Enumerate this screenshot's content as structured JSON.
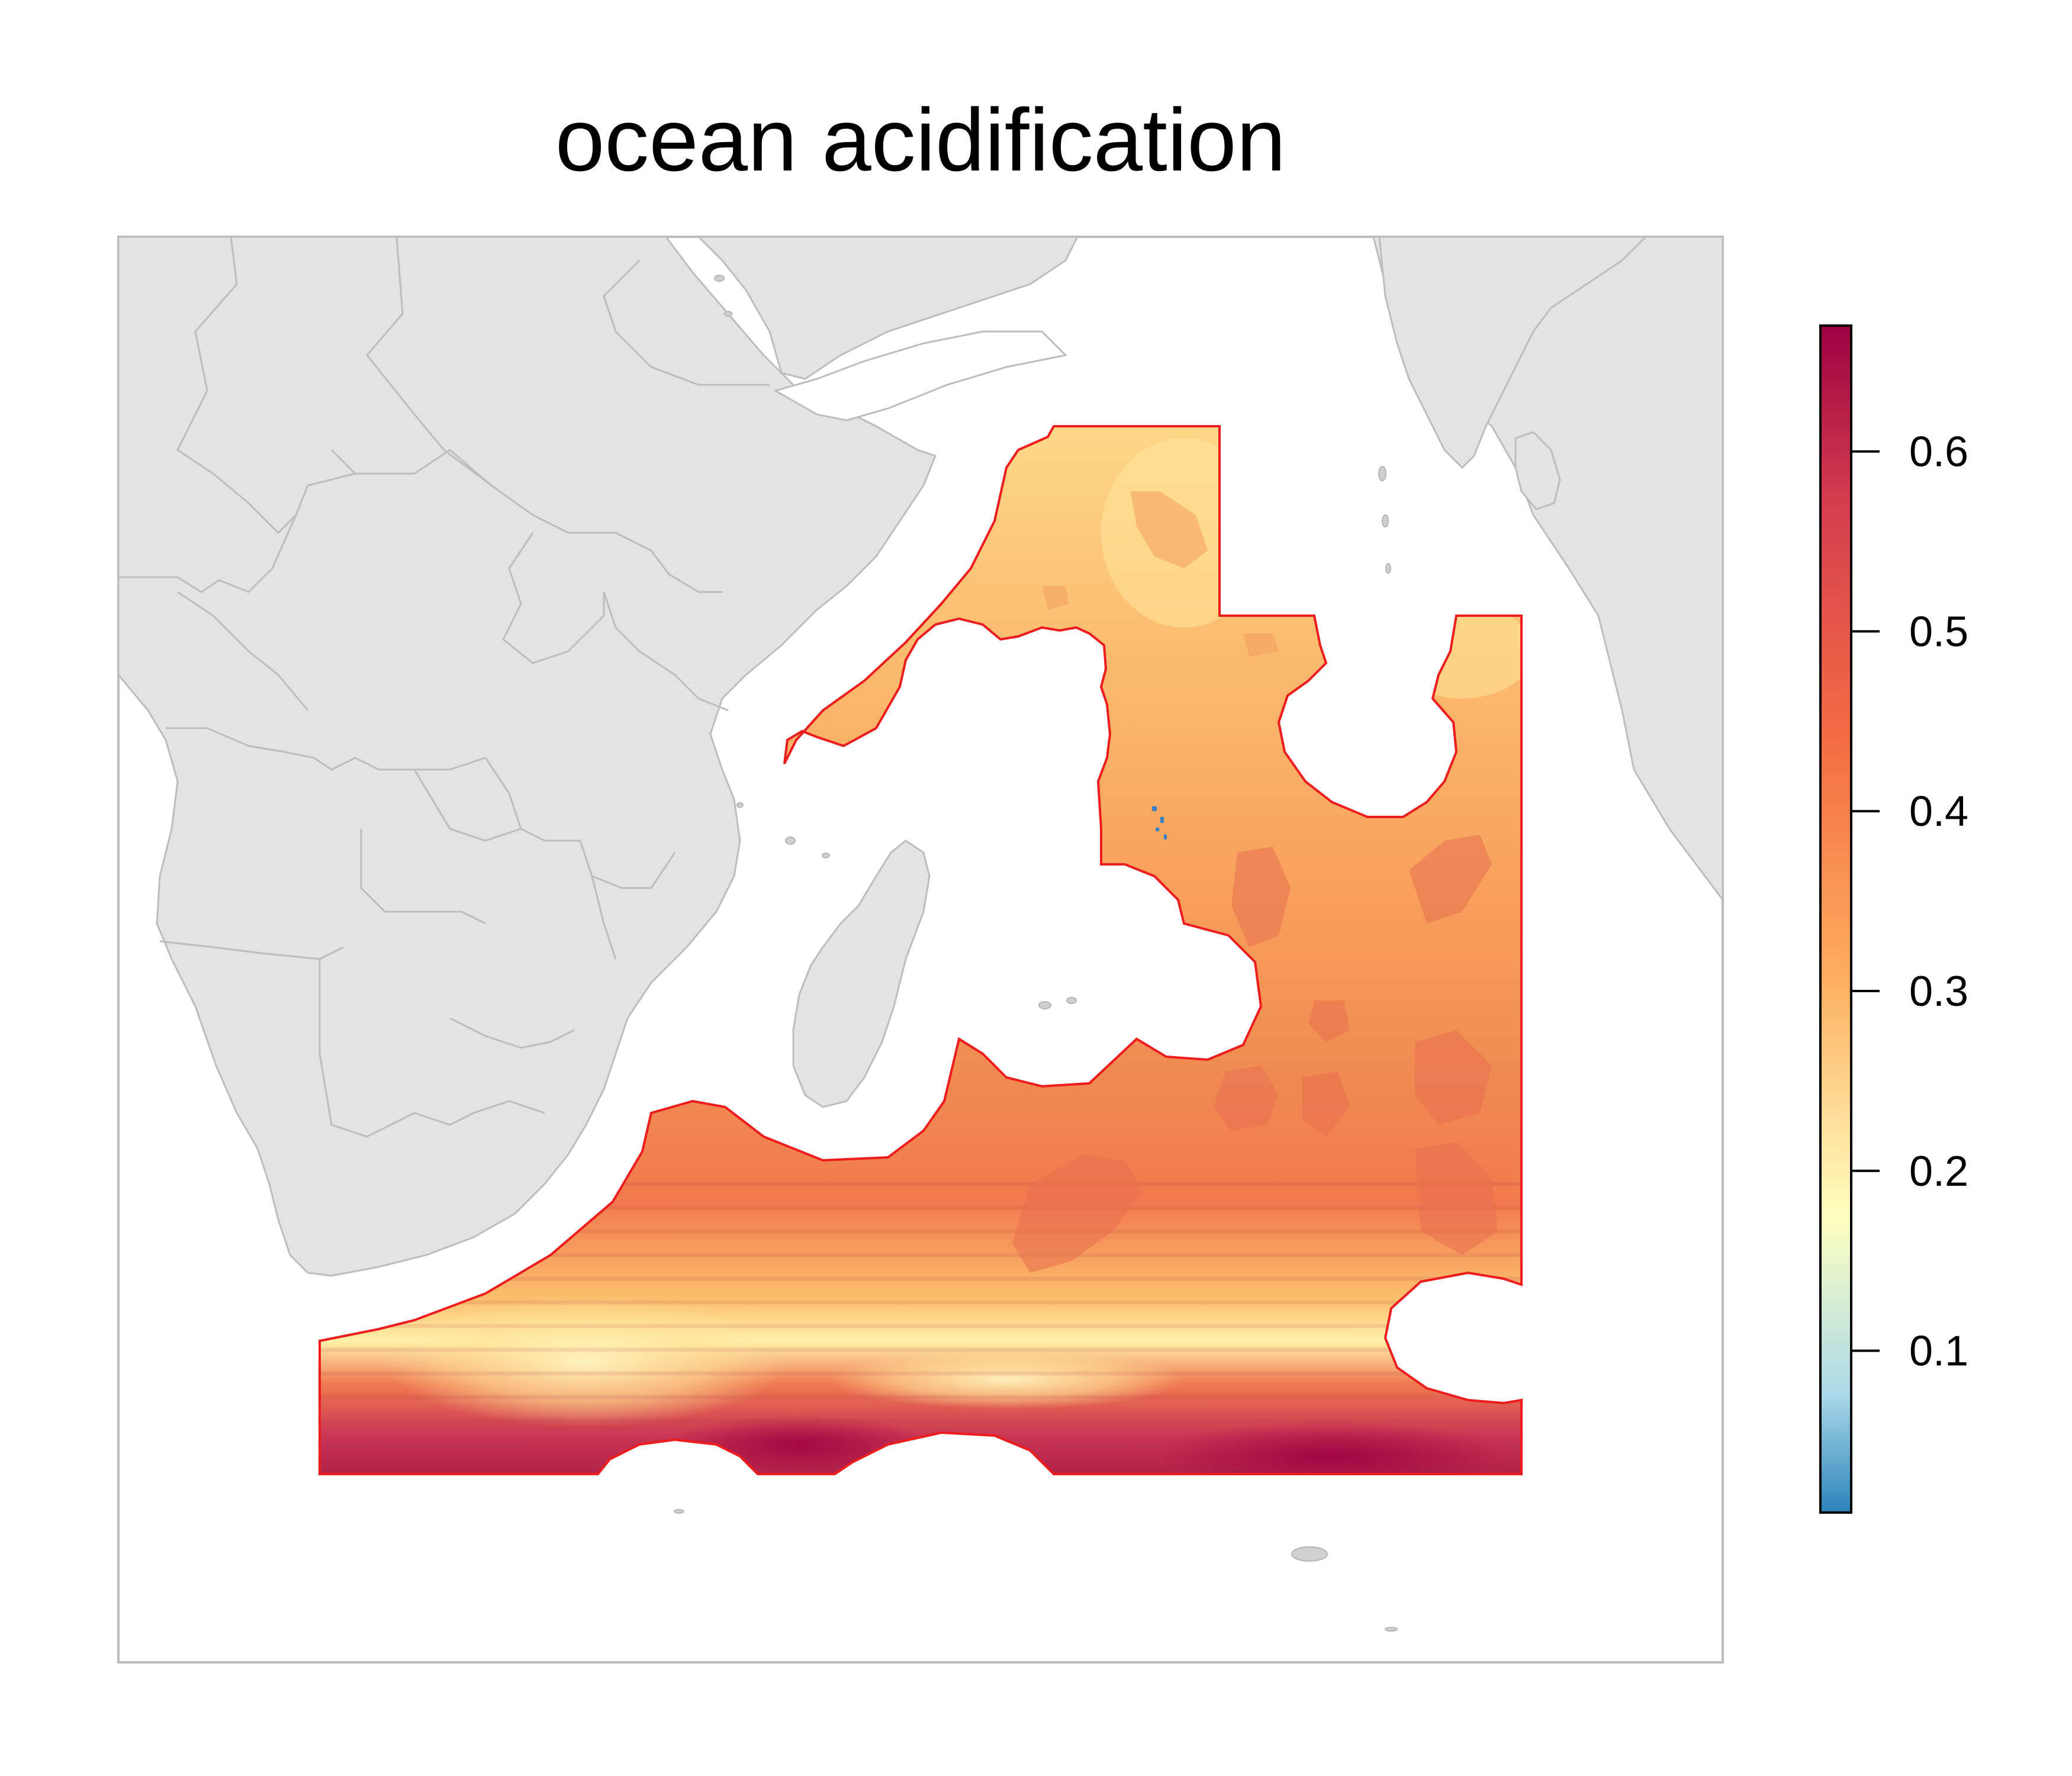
{
  "title": "ocean acidification",
  "legend": {
    "ticks": [
      {
        "value": 0.1,
        "label": "0.1"
      },
      {
        "value": 0.2,
        "label": "0.2"
      },
      {
        "value": 0.3,
        "label": "0.3"
      },
      {
        "value": 0.4,
        "label": "0.4"
      },
      {
        "value": 0.5,
        "label": "0.5"
      },
      {
        "value": 0.6,
        "label": "0.6"
      }
    ],
    "min": 0.01,
    "max": 0.67
  },
  "colors": {
    "land": "#e3e3e3",
    "land_border": "#bdbdbd",
    "region_outline": "#ee1c1c",
    "frame": "#bbbbbb",
    "scale": [
      "#2b83ba",
      "#abd9e9",
      "#ffffbf",
      "#fdae61",
      "#f46d43",
      "#d53e4f",
      "#9e0142"
    ]
  }
}
